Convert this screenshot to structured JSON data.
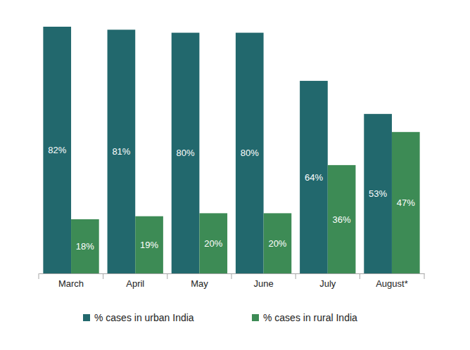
{
  "chart_data": {
    "type": "bar",
    "categories": [
      "March",
      "April",
      "May",
      "June",
      "July",
      "August*"
    ],
    "series": [
      {
        "name": "% cases in urban India",
        "color": "#22686d",
        "values": [
          82,
          81,
          80,
          80,
          64,
          53
        ],
        "value_labels": [
          "82%",
          "81%",
          "80%",
          "80%",
          "64%",
          "53%"
        ]
      },
      {
        "name": "% cases in rural India",
        "color": "#3d8b55",
        "values": [
          18,
          19,
          20,
          20,
          36,
          47
        ],
        "value_labels": [
          "18%",
          "19%",
          "20%",
          "20%",
          "36%",
          "47%"
        ]
      }
    ],
    "ylim": [
      0,
      82
    ],
    "tick_labels": "x",
    "data_labels": true,
    "legend": "bottom"
  }
}
